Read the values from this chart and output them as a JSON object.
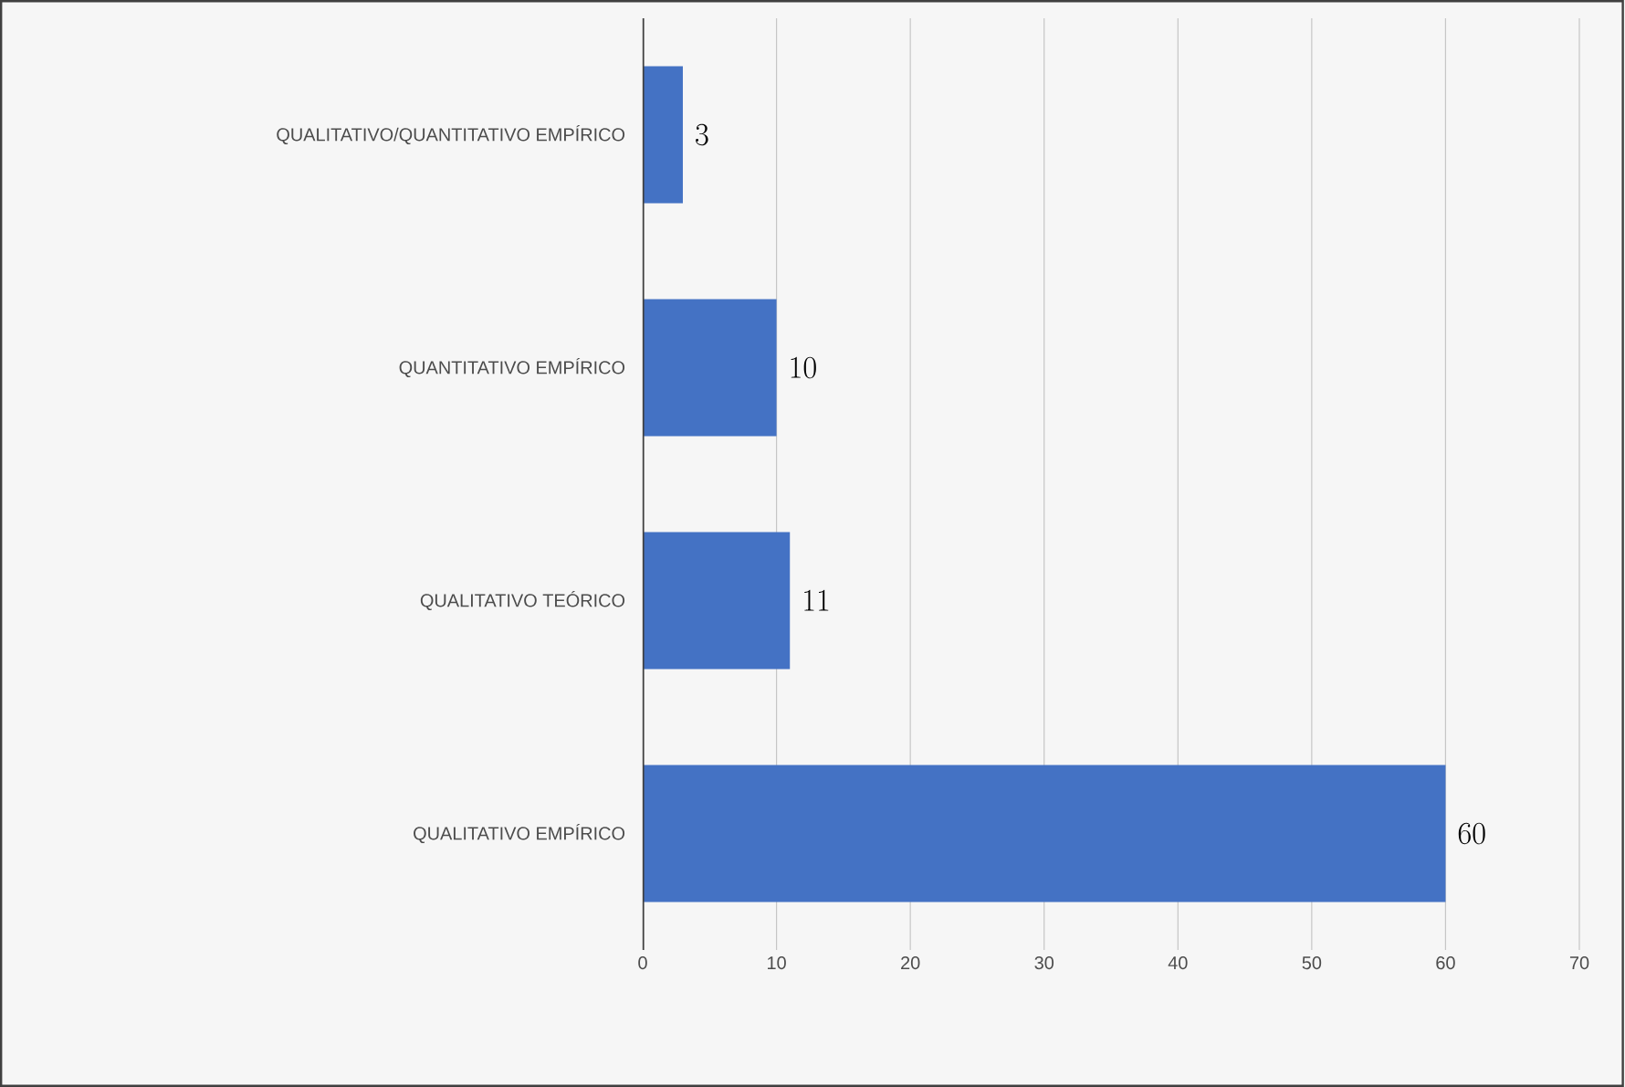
{
  "chart_data": {
    "type": "bar",
    "orientation": "horizontal",
    "categories": [
      "QUALITATIVO/QUANTITATIVO EMPÍRICO",
      "QUANTITATIVO EMPÍRICO",
      "QUALITATIVO TEÓRICO",
      "QUALITATIVO EMPÍRICO"
    ],
    "values": [
      3,
      10,
      11,
      60
    ],
    "color": "#4472c4",
    "xlim": [
      0,
      70
    ],
    "xticks": [
      0,
      10,
      20,
      30,
      40,
      50,
      60,
      70
    ],
    "grid": "x",
    "data_labels": true
  }
}
